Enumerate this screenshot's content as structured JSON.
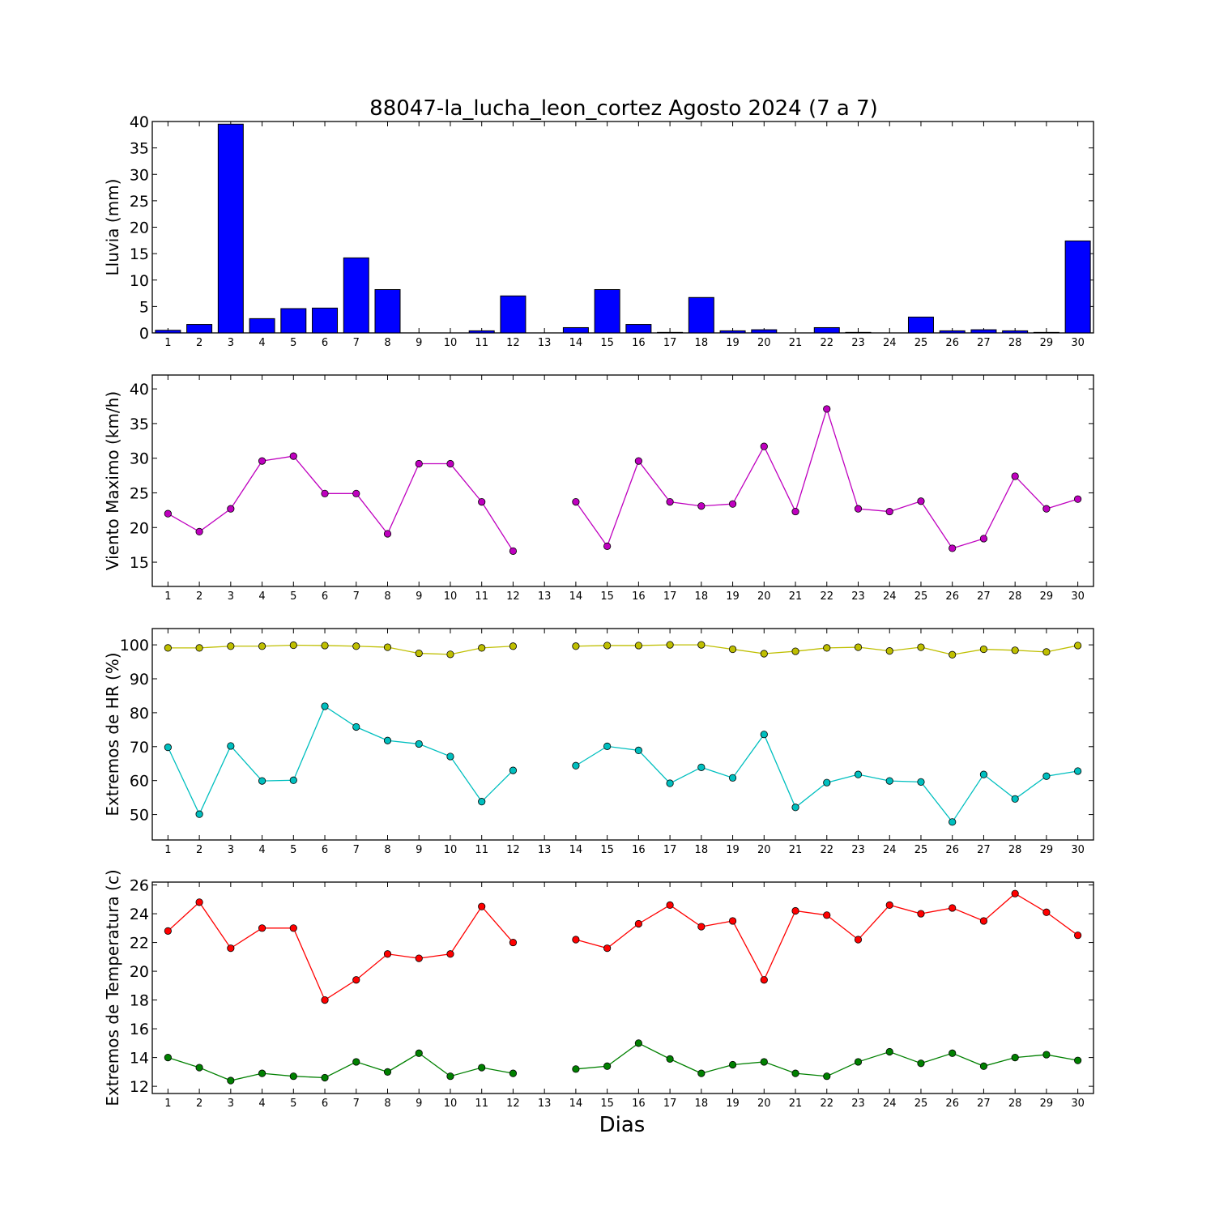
{
  "chart_data": {
    "type": "bar+line",
    "title": "88047-la_lucha_leon_cortez Agosto 2024  (7 a 7)",
    "xlabel": "Dias",
    "days": [
      1,
      2,
      3,
      4,
      5,
      6,
      7,
      8,
      9,
      10,
      11,
      12,
      13,
      14,
      15,
      16,
      17,
      18,
      19,
      20,
      21,
      22,
      23,
      24,
      25,
      26,
      27,
      28,
      29,
      30
    ],
    "panels": [
      {
        "type": "bar",
        "ylabel": "Lluvia (mm)",
        "ylim": [
          0,
          40
        ],
        "yticks": [
          0,
          5,
          10,
          15,
          20,
          25,
          30,
          35,
          40
        ],
        "series": [
          {
            "color": "#0000ff",
            "values": [
              0.5,
              1.6,
              39.5,
              2.7,
              4.6,
              4.7,
              14.2,
              8.2,
              0,
              0,
              0.4,
              7.0,
              null,
              1.0,
              8.2,
              1.6,
              0.1,
              6.7,
              0.4,
              0.6,
              0,
              1.0,
              0.1,
              0,
              3.0,
              0.4,
              0.6,
              0.4,
              0.1,
              17.4
            ]
          }
        ]
      },
      {
        "type": "line",
        "ylabel": "Viento Maximo (km/h)",
        "ylim": [
          11.5,
          42
        ],
        "yticks": [
          15,
          20,
          25,
          30,
          35,
          40
        ],
        "series": [
          {
            "color": "#bf00bf",
            "values": [
              22.0,
              19.4,
              22.7,
              29.6,
              30.3,
              24.9,
              24.9,
              19.1,
              29.2,
              29.2,
              23.7,
              16.6,
              null,
              23.7,
              17.3,
              29.6,
              23.7,
              23.1,
              23.4,
              31.7,
              22.3,
              37.1,
              22.7,
              22.3,
              23.8,
              17.0,
              18.4,
              27.4,
              22.7,
              24.1
            ]
          }
        ]
      },
      {
        "type": "line",
        "ylabel": "Extremos de HR (%)",
        "ylim": [
          42.5,
          104.8
        ],
        "yticks": [
          50,
          60,
          70,
          80,
          90,
          100
        ],
        "series": [
          {
            "color": "#bfbf00",
            "values": [
              99.1,
              99.1,
              99.6,
              99.6,
              99.9,
              99.8,
              99.6,
              99.3,
              97.5,
              97.2,
              99.1,
              99.6,
              null,
              99.6,
              99.8,
              99.8,
              100.0,
              100.0,
              98.7,
              97.4,
              98.1,
              99.1,
              99.3,
              98.2,
              99.3,
              97.1,
              98.7,
              98.4,
              97.9,
              99.8
            ]
          },
          {
            "color": "#00bfbf",
            "values": [
              69.8,
              50.1,
              70.2,
              59.9,
              60.1,
              81.9,
              75.8,
              71.8,
              70.8,
              67.1,
              53.8,
              63.0,
              null,
              64.4,
              70.1,
              68.9,
              59.2,
              63.9,
              60.8,
              73.6,
              52.1,
              59.4,
              61.8,
              59.9,
              59.6,
              47.8,
              61.8,
              54.6,
              61.3,
              62.8
            ]
          }
        ]
      },
      {
        "type": "line",
        "ylabel": "Extremos de Temperatura (c)",
        "ylim": [
          11.5,
          26.2
        ],
        "yticks": [
          12,
          14,
          16,
          18,
          20,
          22,
          24,
          26
        ],
        "series": [
          {
            "color": "#ff0000",
            "values": [
              22.8,
              24.8,
              21.6,
              23.0,
              23.0,
              18.0,
              19.4,
              21.2,
              20.9,
              21.2,
              24.5,
              22.0,
              null,
              22.2,
              21.6,
              23.3,
              24.6,
              23.1,
              23.5,
              19.4,
              24.2,
              23.9,
              22.2,
              24.6,
              24.0,
              24.4,
              23.5,
              25.4,
              24.1,
              22.5
            ]
          },
          {
            "color": "#008000",
            "values": [
              14.0,
              13.3,
              12.4,
              12.9,
              12.7,
              12.6,
              13.7,
              13.0,
              14.3,
              12.7,
              13.3,
              12.9,
              null,
              13.2,
              13.4,
              15.0,
              13.9,
              12.9,
              13.5,
              13.7,
              12.9,
              12.7,
              13.7,
              14.4,
              13.6,
              14.3,
              13.4,
              14.0,
              14.2,
              13.8
            ]
          }
        ]
      }
    ]
  }
}
